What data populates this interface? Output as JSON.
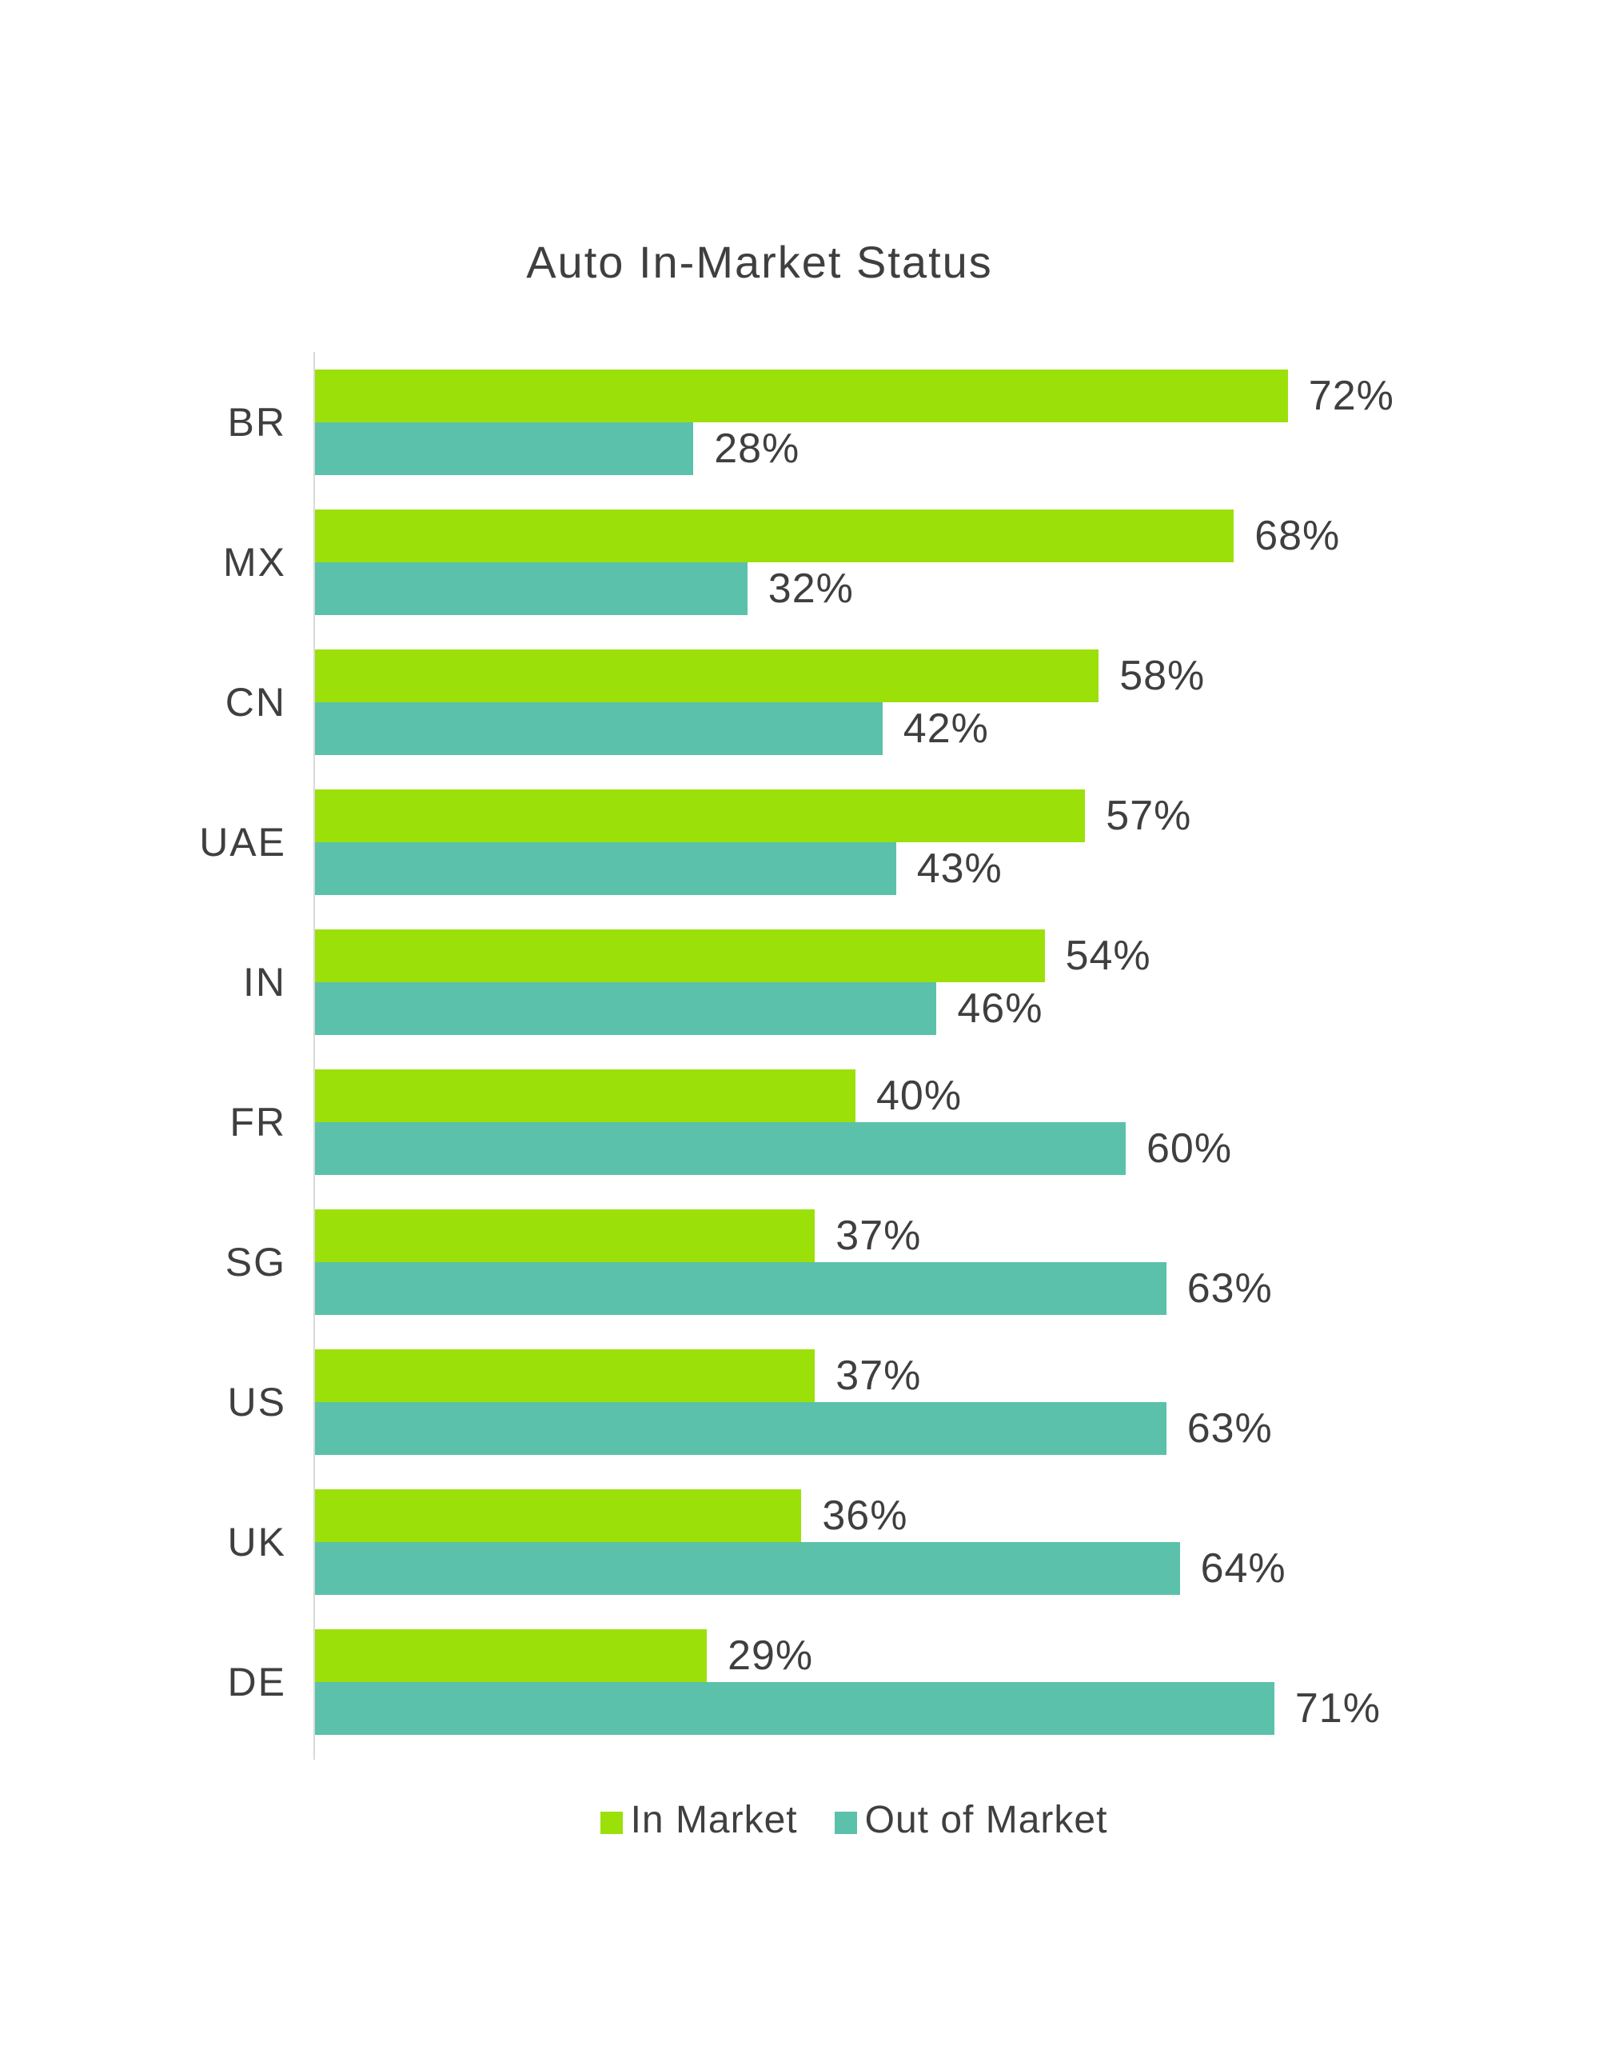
{
  "title": "Auto In-Market Status",
  "colors": {
    "in_market": "#9CE00A",
    "out_of_market": "#5BC1AA",
    "text": "#3F3F3F",
    "axis_line": "#D9D9D9",
    "background": "#FFFFFF"
  },
  "chart_data": {
    "type": "bar",
    "orientation": "horizontal",
    "title": "Auto In-Market Status",
    "categories": [
      "BR",
      "MX",
      "CN",
      "UAE",
      "IN",
      "FR",
      "SG",
      "US",
      "UK",
      "DE"
    ],
    "series": [
      {
        "name": "In Market",
        "color": "#9CE00A",
        "values": [
          72,
          68,
          58,
          57,
          54,
          40,
          37,
          37,
          36,
          29
        ]
      },
      {
        "name": "Out of Market",
        "color": "#5BC1AA",
        "values": [
          28,
          32,
          42,
          43,
          46,
          60,
          63,
          63,
          64,
          71
        ]
      }
    ],
    "value_suffix": "%",
    "data_labels": true,
    "xlim": [
      0,
      80
    ],
    "grid": false,
    "legend_position": "bottom"
  }
}
